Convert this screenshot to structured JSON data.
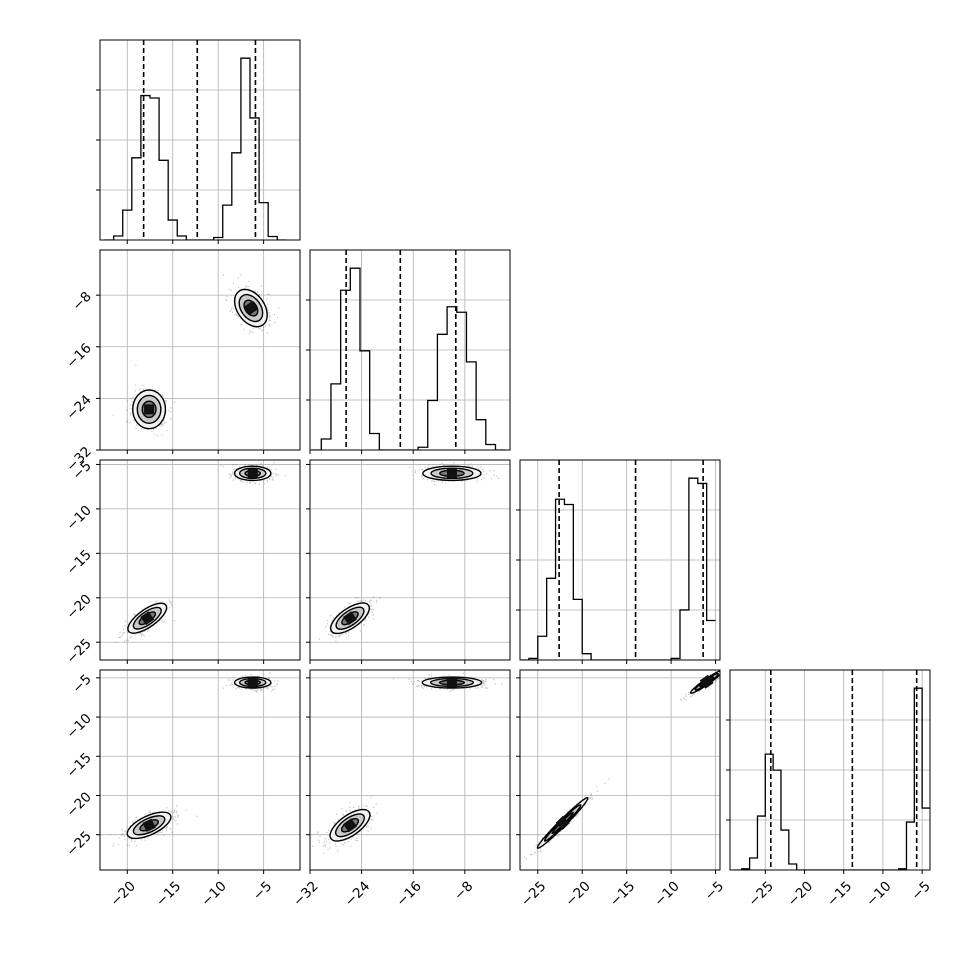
{
  "chart_data": {
    "type": "corner",
    "title": "",
    "grid": true,
    "parameters": [
      {
        "range": [
          -23,
          -1
        ],
        "ticks": [
          -20,
          -15,
          -10,
          -5
        ],
        "tick_labels": [
          "−20",
          "−15",
          "−10",
          "−5"
        ],
        "quantiles": [
          -18.2,
          -12.3,
          -5.9
        ],
        "modes": [
          {
            "mean": -17.5,
            "sd": 1.2
          },
          {
            "mean": -6.3,
            "sd": 1.1
          }
        ],
        "hist_bins_x": [
          -22,
          -21,
          -20,
          -19,
          -18,
          -17,
          -16,
          -15,
          -14,
          -13,
          -12,
          -11,
          -10,
          -9,
          -8,
          -7,
          -6,
          -5,
          -4,
          -3
        ],
        "hist_bins_y": [
          0.0,
          0.08,
          0.6,
          1.65,
          2.9,
          2.85,
          1.6,
          0.4,
          0.08,
          0.0,
          0.0,
          0.0,
          0.05,
          0.7,
          1.75,
          3.65,
          2.45,
          0.75,
          0.07,
          0.0
        ]
      },
      {
        "range": [
          -32,
          -1
        ],
        "ticks": [
          -32,
          -24,
          -16,
          -8
        ],
        "tick_labels": [
          "−32",
          "−24",
          "−16",
          "−8"
        ],
        "quantiles": [
          -26.4,
          -18.0,
          -9.4
        ],
        "modes": [
          {
            "mean": -25.7,
            "sd": 1.3
          },
          {
            "mean": -9.8,
            "sd": 1.5
          }
        ],
        "hist_bins_x": [
          -31,
          -29.5,
          -28,
          -26.5,
          -25,
          -23.5,
          -22,
          -20.5,
          -19,
          -17.5,
          -16,
          -14.5,
          -13,
          -11.5,
          -10,
          -8.5,
          -7,
          -5.5,
          -4,
          -2.5
        ],
        "hist_bins_y": [
          0.0,
          0.2,
          1.2,
          2.9,
          3.3,
          1.8,
          0.3,
          0.0,
          0.0,
          0.0,
          0.0,
          0.05,
          0.9,
          2.1,
          2.6,
          2.5,
          1.6,
          0.55,
          0.1,
          0.0
        ]
      },
      {
        "range": [
          -27,
          -4.5
        ],
        "ticks": [
          -25,
          -20,
          -15,
          -10,
          -5
        ],
        "tick_labels": [
          "−25",
          "−20",
          "−15",
          "−10",
          "−5"
        ],
        "quantiles": [
          -22.6,
          -14.0,
          -6.4
        ],
        "modes": [
          {
            "mean": -22.2,
            "sd": 0.9
          },
          {
            "mean": -6.0,
            "sd": 0.6
          }
        ],
        "hist_bins_x": [
          -26.5,
          -25.5,
          -24.5,
          -23.5,
          -22.5,
          -21.5,
          -20.5,
          -19.5,
          -18.5,
          -17.5,
          -16.5,
          -15.5,
          -14.5,
          -13.5,
          -12.5,
          -11.5,
          -10.5,
          -9.5,
          -8.5,
          -7.5,
          -6.5,
          -5.5
        ],
        "hist_bins_y": [
          0.0,
          0.03,
          0.45,
          1.55,
          3.05,
          2.95,
          1.15,
          0.12,
          0.0,
          0.0,
          0.0,
          0.0,
          0.0,
          0.0,
          0.0,
          0.0,
          0.0,
          0.03,
          0.95,
          3.45,
          3.35,
          0.75
        ]
      },
      {
        "range": [
          -29.5,
          -4.0
        ],
        "ticks": [
          -25,
          -20,
          -15,
          -10,
          -5
        ],
        "tick_labels": [
          "−25",
          "−20",
          "−15",
          "−10",
          "−5"
        ],
        "quantiles": [
          -24.3,
          -13.9,
          -5.7
        ],
        "modes": [
          {
            "mean": -23.6,
            "sd": 1.0
          },
          {
            "mean": -5.6,
            "sd": 0.5
          }
        ],
        "hist_bins_x": [
          -28.5,
          -27.5,
          -26.5,
          -25.5,
          -24.5,
          -23.5,
          -22.5,
          -21.5,
          -20.5,
          -19.5,
          -18.5,
          -17.5,
          -16.5,
          -15.5,
          -14.5,
          -13.5,
          -12.5,
          -11.5,
          -10.5,
          -9.5,
          -8.5,
          -7.5,
          -6.5,
          -5.5,
          -4.5
        ],
        "hist_bins_y": [
          0.0,
          0.03,
          0.3,
          1.35,
          2.9,
          2.5,
          1.0,
          0.15,
          0.0,
          0.0,
          0.0,
          0.0,
          0.0,
          0.0,
          0.0,
          0.0,
          0.0,
          0.0,
          0.0,
          0.0,
          0.0,
          0.03,
          1.2,
          4.55,
          1.55
        ]
      }
    ],
    "pair_clusters": [
      {
        "row": 1,
        "col": 0,
        "clusters": [
          {
            "cx": -17.6,
            "cy": -25.7,
            "rx": 1.8,
            "ry": 3.0,
            "rot": 0
          },
          {
            "cx": -6.4,
            "cy": -10.0,
            "rx": 1.5,
            "ry": 3.2,
            "rot": 35
          }
        ]
      },
      {
        "row": 2,
        "col": 0,
        "clusters": [
          {
            "cx": -17.8,
            "cy": -22.3,
            "rx": 2.5,
            "ry": 1.0,
            "rot": 35
          },
          {
            "cx": -6.2,
            "cy": -6.0,
            "rx": 2.0,
            "ry": 0.8,
            "rot": 0
          }
        ]
      },
      {
        "row": 2,
        "col": 1,
        "clusters": [
          {
            "cx": -25.8,
            "cy": -22.3,
            "rx": 3.5,
            "ry": 1.1,
            "rot": 35
          },
          {
            "cx": -10.0,
            "cy": -6.0,
            "rx": 4.5,
            "ry": 0.8,
            "rot": 0
          }
        ]
      },
      {
        "row": 3,
        "col": 0,
        "clusters": [
          {
            "cx": -17.6,
            "cy": -23.8,
            "rx": 2.6,
            "ry": 1.2,
            "rot": 25
          },
          {
            "cx": -6.2,
            "cy": -5.6,
            "rx": 2.0,
            "ry": 0.7,
            "rot": 0
          }
        ]
      },
      {
        "row": 3,
        "col": 1,
        "clusters": [
          {
            "cx": -25.8,
            "cy": -23.8,
            "rx": 3.6,
            "ry": 1.3,
            "rot": 35
          },
          {
            "cx": -10.0,
            "cy": -5.6,
            "rx": 4.6,
            "ry": 0.7,
            "rot": 0
          }
        ]
      },
      {
        "row": 3,
        "col": 2,
        "clusters": [
          {
            "cx": -22.2,
            "cy": -23.5,
            "rx": 4.0,
            "ry": 0.45,
            "rot": 45
          },
          {
            "cx": -6.0,
            "cy": -5.5,
            "rx": 2.2,
            "ry": 0.35,
            "rot": 35
          }
        ]
      }
    ]
  }
}
